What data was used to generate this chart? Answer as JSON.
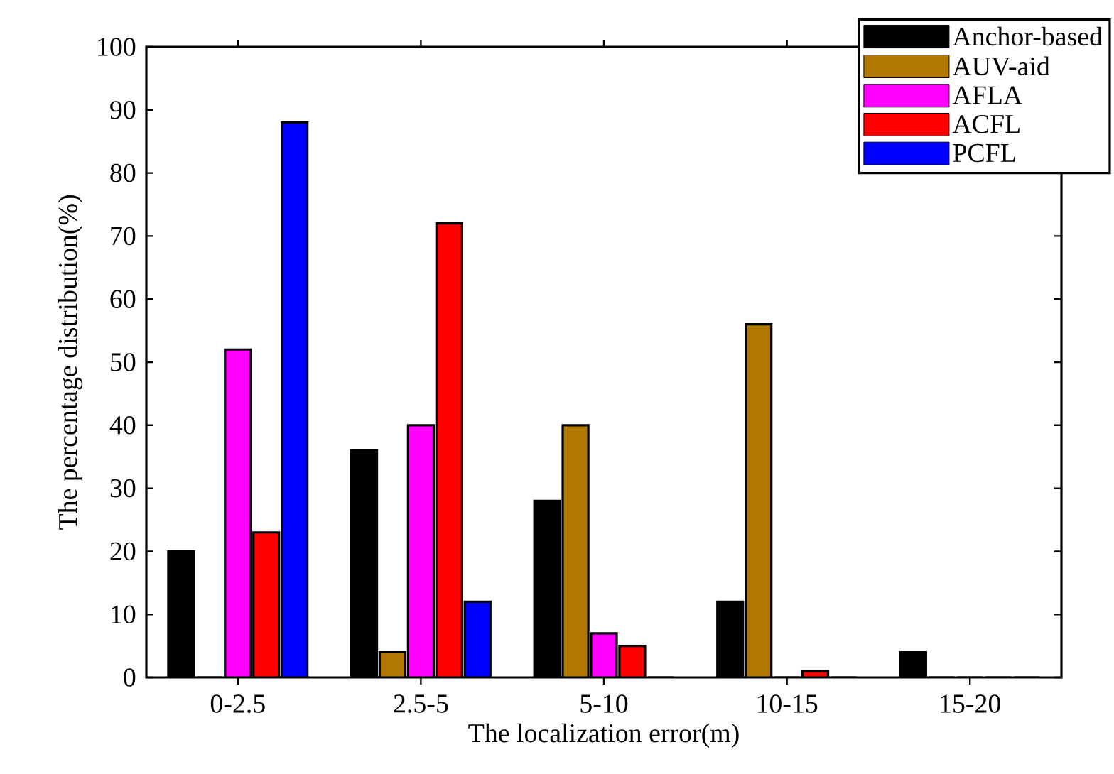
{
  "chart_data": {
    "type": "bar",
    "xlabel": "The localization error(m)",
    "ylabel": "The percentage distribution(%)",
    "categories": [
      "0-2.5",
      "2.5-5",
      "5-10",
      "10-15",
      "15-20"
    ],
    "series": [
      {
        "name": "Anchor-based",
        "color": "#000000",
        "values": [
          20,
          36,
          28,
          12,
          4
        ]
      },
      {
        "name": "AUV-aid",
        "color": "#b07800",
        "values": [
          0,
          4,
          40,
          56,
          0
        ]
      },
      {
        "name": "AFLA",
        "color": "#ff00ff",
        "values": [
          52,
          40,
          7,
          0,
          0
        ]
      },
      {
        "name": "ACFL",
        "color": "#ff0000",
        "values": [
          23,
          72,
          5,
          1,
          0
        ]
      },
      {
        "name": "PCFL",
        "color": "#0000ff",
        "values": [
          88,
          12,
          0,
          0,
          0
        ]
      }
    ],
    "ylim": [
      0,
      100
    ],
    "yticks": [
      0,
      10,
      20,
      30,
      40,
      50,
      60,
      70,
      80,
      90,
      100
    ],
    "grid": false,
    "legend": "top right"
  }
}
